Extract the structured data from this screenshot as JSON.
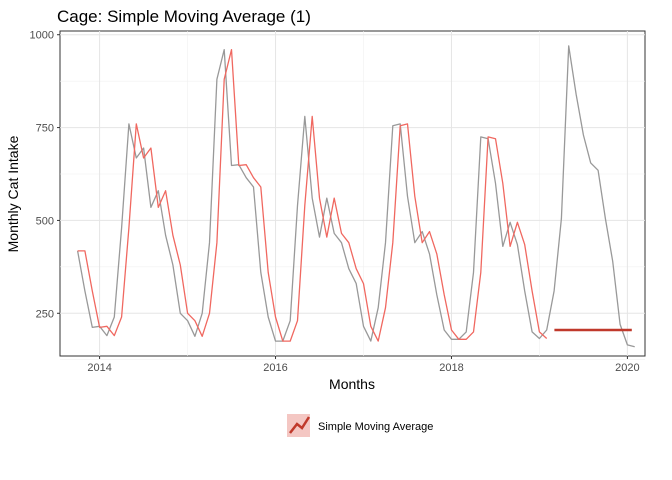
{
  "chart_data": {
    "type": "line",
    "title": "Cage: Simple Moving Average (1)",
    "xlabel": "Months",
    "ylabel": "Monthly Cat Intake",
    "x_ticks": [
      "2014",
      "2016",
      "2018",
      "2020"
    ],
    "y_ticks": [
      "250",
      "500",
      "750",
      "1000"
    ],
    "xlim": [
      2013.55,
      2020.2
    ],
    "ylim": [
      135,
      1010
    ],
    "grid": true,
    "legend_position": "bottom",
    "legend": [
      {
        "label": "Simple Moving Average",
        "color": "#c0392b"
      }
    ],
    "series": [
      {
        "role": "actual",
        "color": "#999999",
        "x": [
          2013.75,
          2013.833,
          2013.917,
          2014.0,
          2014.083,
          2014.167,
          2014.25,
          2014.333,
          2014.417,
          2014.5,
          2014.583,
          2014.667,
          2014.75,
          2014.833,
          2014.917,
          2015.0,
          2015.083,
          2015.167,
          2015.25,
          2015.333,
          2015.417,
          2015.5,
          2015.583,
          2015.667,
          2015.75,
          2015.833,
          2015.917,
          2016.0,
          2016.083,
          2016.167,
          2016.25,
          2016.333,
          2016.417,
          2016.5,
          2016.583,
          2016.667,
          2016.75,
          2016.833,
          2016.917,
          2017.0,
          2017.083,
          2017.167,
          2017.25,
          2017.333,
          2017.417,
          2017.5,
          2017.583,
          2017.667,
          2017.75,
          2017.833,
          2017.917,
          2018.0,
          2018.083,
          2018.167,
          2018.25,
          2018.333,
          2018.417,
          2018.5,
          2018.583,
          2018.667,
          2018.75,
          2018.833,
          2018.917,
          2019.0,
          2019.083,
          2019.167,
          2019.25,
          2019.333,
          2019.417,
          2019.5,
          2019.583,
          2019.667,
          2019.75,
          2019.833,
          2019.917,
          2020.0,
          2020.083
        ],
        "values": [
          418,
          310,
          212,
          215,
          190,
          240,
          480,
          760,
          668,
          695,
          535,
          580,
          460,
          380,
          250,
          230,
          188,
          250,
          440,
          880,
          960,
          648,
          650,
          615,
          590,
          360,
          240,
          175,
          175,
          230,
          540,
          780,
          560,
          455,
          560,
          465,
          440,
          370,
          330,
          215,
          175,
          265,
          440,
          755,
          760,
          565,
          440,
          470,
          410,
          300,
          205,
          180,
          180,
          200,
          360,
          725,
          720,
          600,
          430,
          495,
          435,
          310,
          200,
          182,
          205,
          310,
          505,
          970,
          840,
          730,
          655,
          635,
          505,
          390,
          220,
          165,
          160
        ]
      },
      {
        "role": "fitted",
        "color": "#f06860",
        "x": [
          2013.75,
          2013.833,
          2013.917,
          2014.0,
          2014.083,
          2014.167,
          2014.25,
          2014.333,
          2014.417,
          2014.5,
          2014.583,
          2014.667,
          2014.75,
          2014.833,
          2014.917,
          2015.0,
          2015.083,
          2015.167,
          2015.25,
          2015.333,
          2015.417,
          2015.5,
          2015.583,
          2015.667,
          2015.75,
          2015.833,
          2015.917,
          2016.0,
          2016.083,
          2016.167,
          2016.25,
          2016.333,
          2016.417,
          2016.5,
          2016.583,
          2016.667,
          2016.75,
          2016.833,
          2016.917,
          2017.0,
          2017.083,
          2017.167,
          2017.25,
          2017.333,
          2017.417,
          2017.5,
          2017.583,
          2017.667,
          2017.75,
          2017.833,
          2017.917,
          2018.0,
          2018.083,
          2018.167,
          2018.25,
          2018.333,
          2018.417,
          2018.5,
          2018.583,
          2018.667,
          2018.75,
          2018.833,
          2018.917,
          2019.0,
          2019.083
        ],
        "values": [
          418,
          418,
          310,
          212,
          215,
          190,
          240,
          480,
          760,
          668,
          695,
          535,
          580,
          460,
          380,
          250,
          230,
          188,
          250,
          440,
          880,
          960,
          648,
          650,
          615,
          590,
          360,
          240,
          175,
          175,
          230,
          540,
          780,
          560,
          455,
          560,
          465,
          440,
          370,
          330,
          215,
          175,
          265,
          440,
          755,
          760,
          565,
          440,
          470,
          410,
          300,
          205,
          180,
          180,
          200,
          360,
          725,
          720,
          600,
          430,
          495,
          435,
          310,
          200,
          182
        ]
      },
      {
        "name": "Simple Moving Average",
        "role": "forecast",
        "color": "#c0392b",
        "x": [
          2019.17,
          2020.05
        ],
        "values": [
          205,
          205
        ]
      }
    ]
  }
}
